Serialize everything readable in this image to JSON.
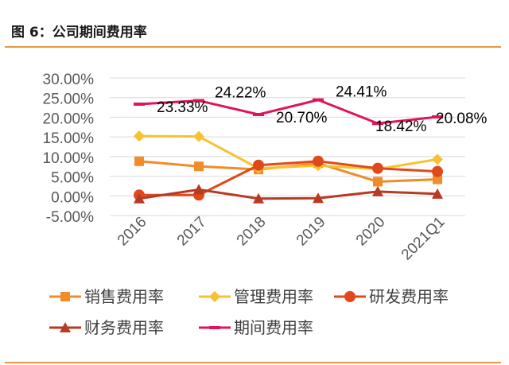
{
  "header": {
    "title": "图 6：公司期间费用率"
  },
  "colors": {
    "rule": "#e8964a"
  },
  "chart_data": {
    "type": "line",
    "categories": [
      "2016",
      "2017",
      "2018",
      "2019",
      "2020",
      "2021Q1"
    ],
    "ylim": [
      -0.05,
      0.3
    ],
    "ytick_labels": [
      "-5.00%",
      "0.00%",
      "5.00%",
      "10.00%",
      "15.00%",
      "20.00%",
      "25.00%",
      "30.00%"
    ],
    "ytick_values": [
      -0.05,
      0,
      0.05,
      0.1,
      0.15,
      0.2,
      0.25,
      0.3
    ],
    "grid": true,
    "legend_position": "bottom",
    "series": [
      {
        "name": "销售费用率",
        "color": "#f08c2a",
        "marker": "square",
        "values": [
          0.088,
          0.075,
          0.067,
          0.083,
          0.036,
          0.042
        ]
      },
      {
        "name": "管理费用率",
        "color": "#f9c12e",
        "marker": "diamond",
        "values": [
          0.152,
          0.151,
          0.07,
          0.077,
          0.068,
          0.093
        ]
      },
      {
        "name": "研发费用率",
        "color": "#e04a1a",
        "marker": "circle",
        "values": [
          0.002,
          0.002,
          0.078,
          0.088,
          0.07,
          0.062
        ]
      },
      {
        "name": "财务费用率",
        "color": "#b83a22",
        "marker": "triangle",
        "values": [
          -0.007,
          0.016,
          -0.007,
          -0.006,
          0.011,
          0.005
        ]
      },
      {
        "name": "期间费用率",
        "color": "#e0145c",
        "marker": "dash",
        "values": [
          0.2333,
          0.2422,
          0.207,
          0.2441,
          0.1842,
          0.2008
        ]
      }
    ],
    "data_labels": [
      {
        "series": "期间费用率",
        "index": 0,
        "text": "23.33%"
      },
      {
        "series": "期间费用率",
        "index": 1,
        "text": "24.22%"
      },
      {
        "series": "期间费用率",
        "index": 2,
        "text": "20.70%"
      },
      {
        "series": "期间费用率",
        "index": 3,
        "text": "24.41%"
      },
      {
        "series": "期间费用率",
        "index": 4,
        "text": "18.42%"
      },
      {
        "series": "期间费用率",
        "index": 5,
        "text": "20.08%"
      }
    ]
  }
}
